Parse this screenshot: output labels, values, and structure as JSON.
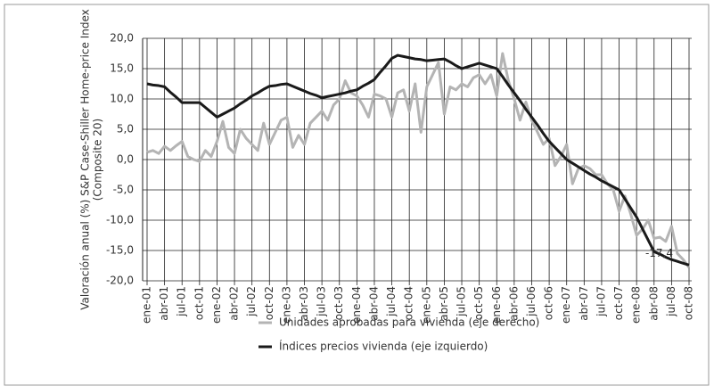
{
  "chart_data": {
    "type": "line",
    "y_label": [
      "Valoración anual (%) S&P Case-Shiller Home-price Index",
      "(Composite 20)"
    ],
    "categories": [
      "ene-01",
      null,
      null,
      "abr-01",
      null,
      null,
      "jul-01",
      null,
      null,
      "oct-01",
      null,
      null,
      "ene-02",
      null,
      null,
      "abr-02",
      null,
      null,
      "jul-02",
      null,
      null,
      "oct-02",
      null,
      null,
      "ene-03",
      null,
      null,
      "abr-03",
      null,
      null,
      "jul-03",
      null,
      null,
      "oct-03",
      null,
      null,
      "ene-04",
      null,
      null,
      "abr-04",
      null,
      null,
      "jul-04",
      null,
      null,
      "oct-04",
      null,
      null,
      "ene-05",
      null,
      null,
      "abr-05",
      null,
      null,
      "jul-05",
      null,
      null,
      "oct-05",
      null,
      null,
      "ene-06",
      null,
      null,
      "abr-06",
      null,
      null,
      "jul-06",
      null,
      null,
      "oct-06",
      null,
      null,
      "ene-07",
      null,
      null,
      "abr-07",
      null,
      null,
      "jul-07",
      null,
      null,
      "oct-07",
      null,
      null,
      "ene-08",
      null,
      null,
      "abr-08",
      null,
      null,
      "jul-08",
      null,
      null,
      "oct-08"
    ],
    "series": [
      {
        "name": "Unidades aprobadas para vivienda (eje derecho)",
        "color": "#b4b4b4",
        "values": [
          1.2,
          1.5,
          1.0,
          2.2,
          1.5,
          2.3,
          3.0,
          0.5,
          0.0,
          -0.3,
          1.5,
          0.5,
          3.0,
          6.3,
          2.0,
          1.0,
          5.0,
          3.5,
          2.5,
          1.5,
          6.0,
          2.5,
          4.5,
          6.5,
          7.0,
          2.0,
          4.0,
          2.5,
          6.0,
          7.0,
          8.0,
          6.5,
          9.0,
          10.0,
          13.0,
          11.0,
          10.5,
          9.0,
          7.0,
          10.8,
          10.5,
          10.0,
          7.0,
          11.0,
          11.5,
          8.0,
          12.5,
          4.5,
          12.0,
          14.0,
          16.0,
          7.5,
          12.0,
          11.5,
          12.5,
          12.0,
          13.5,
          14.0,
          12.5,
          14.0,
          10.5,
          17.5,
          13.0,
          10.0,
          6.5,
          9.5,
          6.5,
          4.5,
          2.5,
          3.5,
          -1.0,
          0.5,
          2.5,
          -4.0,
          -1.5,
          -1.0,
          -1.5,
          -2.5,
          -2.5,
          -4.0,
          -5.0,
          -8.5,
          -6.0,
          -9.0,
          -12.5,
          -11.5,
          -10.0,
          -13.0,
          -12.8,
          -13.5,
          -11.0,
          -15.5,
          -16.5,
          -17.8
        ]
      },
      {
        "name": "Índices precios vivienda (eje izquierdo)",
        "color": "#1a1a1a",
        "values": [
          12.5,
          12.3,
          12.2,
          12.0,
          11.1,
          10.3,
          9.4,
          9.4,
          9.4,
          9.4,
          8.6,
          7.8,
          7.0,
          7.5,
          8.0,
          8.5,
          9.2,
          9.8,
          10.5,
          11.0,
          11.6,
          12.1,
          12.2,
          12.4,
          12.5,
          12.1,
          11.7,
          11.3,
          10.9,
          10.6,
          10.2,
          10.4,
          10.6,
          10.8,
          11.0,
          11.3,
          11.5,
          12.1,
          12.6,
          13.2,
          14.4,
          15.5,
          16.7,
          17.2,
          17.0,
          16.8,
          16.6,
          16.5,
          16.3,
          16.4,
          16.5,
          16.6,
          16.1,
          15.5,
          15.0,
          15.3,
          15.6,
          15.9,
          15.6,
          15.3,
          15.0,
          13.7,
          12.3,
          11.0,
          9.7,
          8.3,
          7.0,
          5.7,
          4.3,
          3.0,
          2.0,
          1.0,
          0.0,
          -0.6,
          -1.2,
          -1.8,
          -2.4,
          -2.9,
          -3.5,
          -4.0,
          -4.5,
          -5.0,
          -6.5,
          -8.0,
          -9.5,
          -11.4,
          -13.3,
          -15.2,
          -15.6,
          -16.1,
          -16.5,
          -16.8,
          -17.1,
          -17.4
        ]
      }
    ],
    "ylim": [
      -20,
      20
    ],
    "yticks": [
      {
        "value": -20,
        "label": "-20,0"
      },
      {
        "value": -15,
        "label": "-15,0"
      },
      {
        "value": -10,
        "label": "-10,0"
      },
      {
        "value": -5,
        "label": "-5,0"
      },
      {
        "value": 0,
        "label": "0,0"
      },
      {
        "value": 5,
        "label": "5,0"
      },
      {
        "value": 10,
        "label": "10,0"
      },
      {
        "value": 15,
        "label": "15,0"
      },
      {
        "value": 20,
        "label": "20,0"
      }
    ],
    "grid": true,
    "annotation": {
      "text": "-17,4",
      "series": 1,
      "index": 93
    }
  }
}
